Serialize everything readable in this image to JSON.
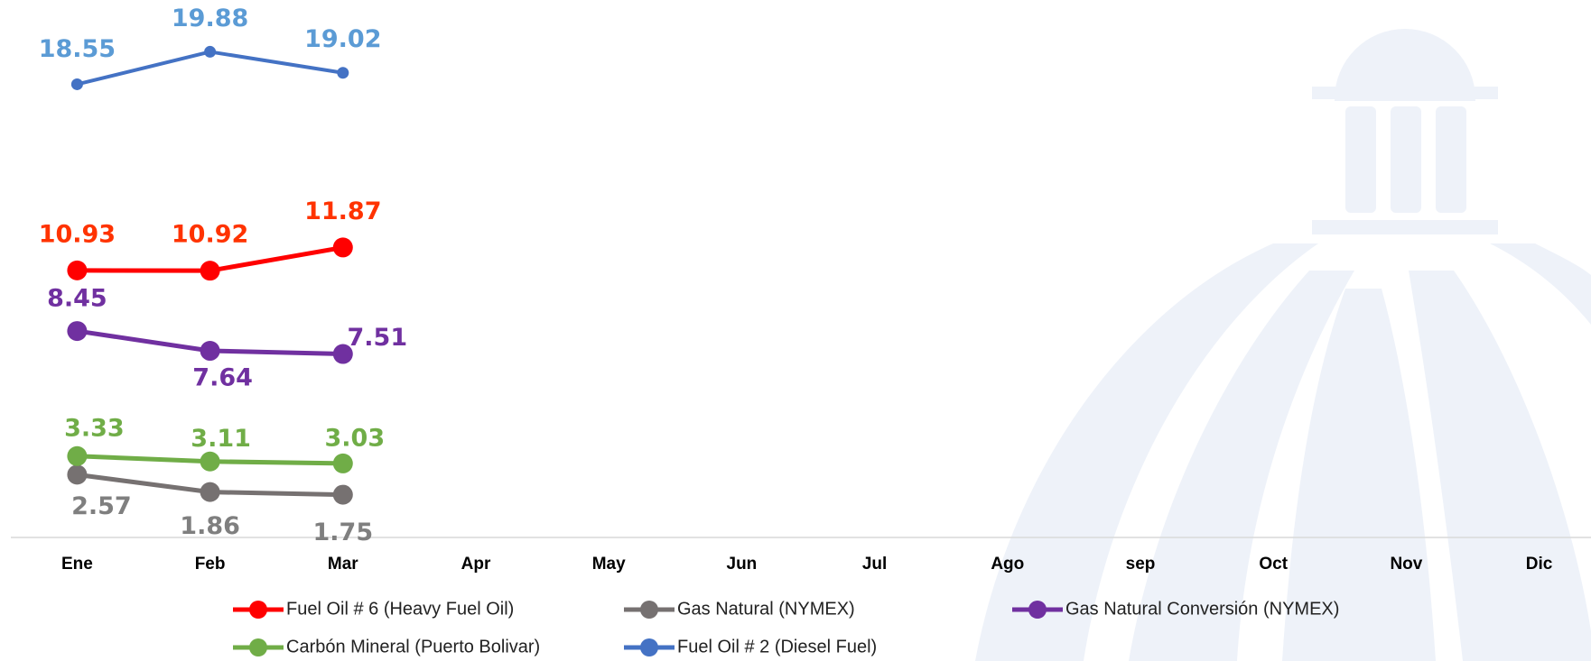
{
  "chart_data": {
    "type": "line",
    "categories": [
      "Ene",
      "Feb",
      "Mar",
      "Apr",
      "May",
      "Jun",
      "Jul",
      "Ago",
      "sep",
      "Oct",
      "Nov",
      "Dic"
    ],
    "ylim": [
      0,
      22
    ],
    "series": [
      {
        "name": "Fuel Oil # 6 (Heavy Fuel Oil)",
        "color": "#ff0000",
        "values": [
          10.93,
          10.92,
          11.87,
          null,
          null,
          null,
          null,
          null,
          null,
          null,
          null,
          null
        ]
      },
      {
        "name": "Gas Natural (NYMEX)",
        "color": "#767171",
        "values": [
          2.57,
          1.86,
          1.75,
          null,
          null,
          null,
          null,
          null,
          null,
          null,
          null,
          null
        ]
      },
      {
        "name": "Gas Natural Conversión (NYMEX)",
        "color": "#7030a0",
        "values": [
          8.45,
          7.64,
          7.51,
          null,
          null,
          null,
          null,
          null,
          null,
          null,
          null,
          null
        ]
      },
      {
        "name": "Carbón Mineral (Puerto Bolivar)",
        "color": "#70ad47",
        "values": [
          3.33,
          3.11,
          3.03,
          null,
          null,
          null,
          null,
          null,
          null,
          null,
          null,
          null
        ]
      },
      {
        "name": "Fuel Oil # 2 (Diesel Fuel)",
        "color": "#4472c4",
        "values": [
          18.55,
          19.88,
          19.02,
          null,
          null,
          null,
          null,
          null,
          null,
          null,
          null,
          null
        ]
      }
    ]
  }
}
